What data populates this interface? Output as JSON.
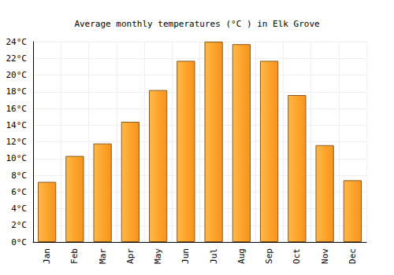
{
  "chart_data": {
    "type": "bar",
    "title": "Average monthly temperatures (°C ) in Elk Grove",
    "categories": [
      "Jan",
      "Feb",
      "Mar",
      "Apr",
      "May",
      "Jun",
      "Jul",
      "Aug",
      "Sep",
      "Oct",
      "Nov",
      "Dec"
    ],
    "values": [
      7.2,
      10.3,
      11.8,
      14.4,
      18.2,
      21.7,
      24.0,
      23.7,
      21.7,
      17.6,
      11.6,
      7.4
    ],
    "color": "#fca52c",
    "ylim": [
      0,
      24
    ],
    "yticks": [
      {
        "value": 0,
        "label": "0°C"
      },
      {
        "value": 2,
        "label": "2°C"
      },
      {
        "value": 4,
        "label": "4°C"
      },
      {
        "value": 6,
        "label": "6°C"
      },
      {
        "value": 8,
        "label": "8°C"
      },
      {
        "value": 10,
        "label": "10°C"
      },
      {
        "value": 12,
        "label": "12°C"
      },
      {
        "value": 14,
        "label": "14°C"
      },
      {
        "value": 16,
        "label": "16°C"
      },
      {
        "value": 18,
        "label": "18°C"
      },
      {
        "value": 20,
        "label": "20°C"
      },
      {
        "value": 22,
        "label": "22°C"
      },
      {
        "value": 24,
        "label": "24°C"
      }
    ],
    "grid": true
  }
}
